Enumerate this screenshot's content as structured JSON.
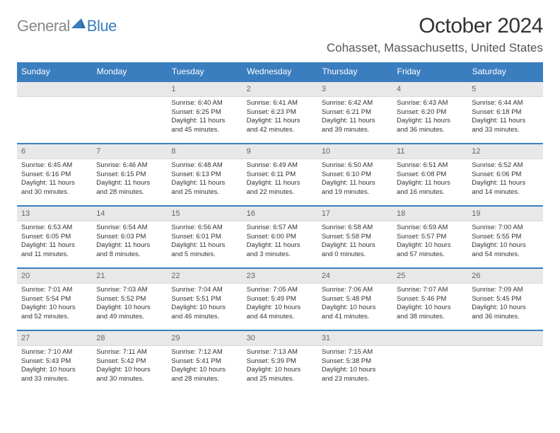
{
  "logo": {
    "general": "General",
    "blue": "Blue"
  },
  "header": {
    "month_title": "October 2024",
    "location": "Cohasset, Massachusetts, United States"
  },
  "colors": {
    "header_bg": "#3a7ebf",
    "daynum_bg": "#e8e8e8",
    "week_border": "#3a7ebf"
  },
  "weekdays": [
    "Sunday",
    "Monday",
    "Tuesday",
    "Wednesday",
    "Thursday",
    "Friday",
    "Saturday"
  ],
  "weeks": [
    [
      null,
      null,
      {
        "n": "1",
        "sr": "Sunrise: 6:40 AM",
        "ss": "Sunset: 6:25 PM",
        "dl": "Daylight: 11 hours and 45 minutes."
      },
      {
        "n": "2",
        "sr": "Sunrise: 6:41 AM",
        "ss": "Sunset: 6:23 PM",
        "dl": "Daylight: 11 hours and 42 minutes."
      },
      {
        "n": "3",
        "sr": "Sunrise: 6:42 AM",
        "ss": "Sunset: 6:21 PM",
        "dl": "Daylight: 11 hours and 39 minutes."
      },
      {
        "n": "4",
        "sr": "Sunrise: 6:43 AM",
        "ss": "Sunset: 6:20 PM",
        "dl": "Daylight: 11 hours and 36 minutes."
      },
      {
        "n": "5",
        "sr": "Sunrise: 6:44 AM",
        "ss": "Sunset: 6:18 PM",
        "dl": "Daylight: 11 hours and 33 minutes."
      }
    ],
    [
      {
        "n": "6",
        "sr": "Sunrise: 6:45 AM",
        "ss": "Sunset: 6:16 PM",
        "dl": "Daylight: 11 hours and 30 minutes."
      },
      {
        "n": "7",
        "sr": "Sunrise: 6:46 AM",
        "ss": "Sunset: 6:15 PM",
        "dl": "Daylight: 11 hours and 28 minutes."
      },
      {
        "n": "8",
        "sr": "Sunrise: 6:48 AM",
        "ss": "Sunset: 6:13 PM",
        "dl": "Daylight: 11 hours and 25 minutes."
      },
      {
        "n": "9",
        "sr": "Sunrise: 6:49 AM",
        "ss": "Sunset: 6:11 PM",
        "dl": "Daylight: 11 hours and 22 minutes."
      },
      {
        "n": "10",
        "sr": "Sunrise: 6:50 AM",
        "ss": "Sunset: 6:10 PM",
        "dl": "Daylight: 11 hours and 19 minutes."
      },
      {
        "n": "11",
        "sr": "Sunrise: 6:51 AM",
        "ss": "Sunset: 6:08 PM",
        "dl": "Daylight: 11 hours and 16 minutes."
      },
      {
        "n": "12",
        "sr": "Sunrise: 6:52 AM",
        "ss": "Sunset: 6:06 PM",
        "dl": "Daylight: 11 hours and 14 minutes."
      }
    ],
    [
      {
        "n": "13",
        "sr": "Sunrise: 6:53 AM",
        "ss": "Sunset: 6:05 PM",
        "dl": "Daylight: 11 hours and 11 minutes."
      },
      {
        "n": "14",
        "sr": "Sunrise: 6:54 AM",
        "ss": "Sunset: 6:03 PM",
        "dl": "Daylight: 11 hours and 8 minutes."
      },
      {
        "n": "15",
        "sr": "Sunrise: 6:56 AM",
        "ss": "Sunset: 6:01 PM",
        "dl": "Daylight: 11 hours and 5 minutes."
      },
      {
        "n": "16",
        "sr": "Sunrise: 6:57 AM",
        "ss": "Sunset: 6:00 PM",
        "dl": "Daylight: 11 hours and 3 minutes."
      },
      {
        "n": "17",
        "sr": "Sunrise: 6:58 AM",
        "ss": "Sunset: 5:58 PM",
        "dl": "Daylight: 11 hours and 0 minutes."
      },
      {
        "n": "18",
        "sr": "Sunrise: 6:59 AM",
        "ss": "Sunset: 5:57 PM",
        "dl": "Daylight: 10 hours and 57 minutes."
      },
      {
        "n": "19",
        "sr": "Sunrise: 7:00 AM",
        "ss": "Sunset: 5:55 PM",
        "dl": "Daylight: 10 hours and 54 minutes."
      }
    ],
    [
      {
        "n": "20",
        "sr": "Sunrise: 7:01 AM",
        "ss": "Sunset: 5:54 PM",
        "dl": "Daylight: 10 hours and 52 minutes."
      },
      {
        "n": "21",
        "sr": "Sunrise: 7:03 AM",
        "ss": "Sunset: 5:52 PM",
        "dl": "Daylight: 10 hours and 49 minutes."
      },
      {
        "n": "22",
        "sr": "Sunrise: 7:04 AM",
        "ss": "Sunset: 5:51 PM",
        "dl": "Daylight: 10 hours and 46 minutes."
      },
      {
        "n": "23",
        "sr": "Sunrise: 7:05 AM",
        "ss": "Sunset: 5:49 PM",
        "dl": "Daylight: 10 hours and 44 minutes."
      },
      {
        "n": "24",
        "sr": "Sunrise: 7:06 AM",
        "ss": "Sunset: 5:48 PM",
        "dl": "Daylight: 10 hours and 41 minutes."
      },
      {
        "n": "25",
        "sr": "Sunrise: 7:07 AM",
        "ss": "Sunset: 5:46 PM",
        "dl": "Daylight: 10 hours and 38 minutes."
      },
      {
        "n": "26",
        "sr": "Sunrise: 7:09 AM",
        "ss": "Sunset: 5:45 PM",
        "dl": "Daylight: 10 hours and 36 minutes."
      }
    ],
    [
      {
        "n": "27",
        "sr": "Sunrise: 7:10 AM",
        "ss": "Sunset: 5:43 PM",
        "dl": "Daylight: 10 hours and 33 minutes."
      },
      {
        "n": "28",
        "sr": "Sunrise: 7:11 AM",
        "ss": "Sunset: 5:42 PM",
        "dl": "Daylight: 10 hours and 30 minutes."
      },
      {
        "n": "29",
        "sr": "Sunrise: 7:12 AM",
        "ss": "Sunset: 5:41 PM",
        "dl": "Daylight: 10 hours and 28 minutes."
      },
      {
        "n": "30",
        "sr": "Sunrise: 7:13 AM",
        "ss": "Sunset: 5:39 PM",
        "dl": "Daylight: 10 hours and 25 minutes."
      },
      {
        "n": "31",
        "sr": "Sunrise: 7:15 AM",
        "ss": "Sunset: 5:38 PM",
        "dl": "Daylight: 10 hours and 23 minutes."
      },
      null,
      null
    ]
  ]
}
